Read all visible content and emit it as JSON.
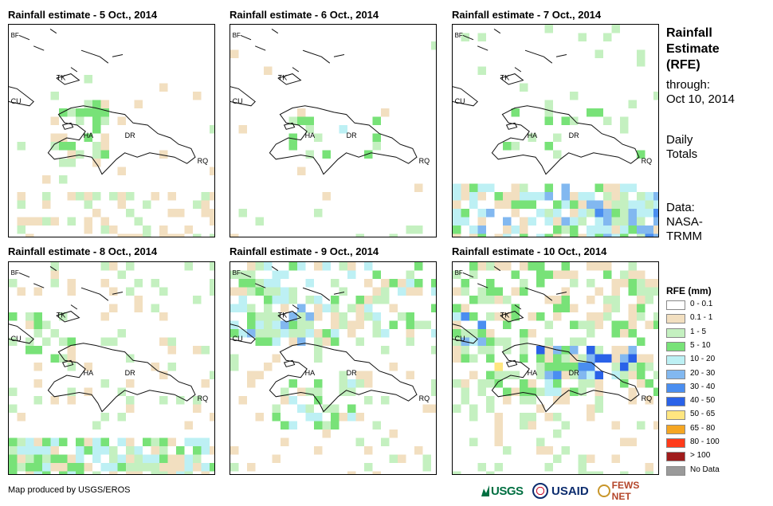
{
  "panels": [
    {
      "title": "Rainfall estimate - 5 Oct., 2014"
    },
    {
      "title": "Rainfall estimate - 6 Oct., 2014"
    },
    {
      "title": "Rainfall estimate - 7 Oct., 2014"
    },
    {
      "title": "Rainfall estimate - 8 Oct., 2014"
    },
    {
      "title": "Rainfall estimate - 9 Oct., 2014"
    },
    {
      "title": "Rainfall estimate - 10 Oct., 2014"
    }
  ],
  "map_labels": {
    "bf": "BF",
    "cu": "CU",
    "tk": "TK",
    "ha": "HA",
    "dr": "DR",
    "rq": "RQ"
  },
  "side": {
    "title_lines": [
      "Rainfall",
      "Estimate",
      "(RFE)"
    ],
    "through_label": "through:",
    "through_date": "Oct 10, 2014",
    "totals_lines": [
      "Daily",
      "Totals"
    ],
    "data_lines": [
      "Data:",
      "NASA-",
      "TRMM"
    ]
  },
  "legend": {
    "title": "RFE (mm)",
    "items": [
      {
        "label": "0 - 0.1",
        "color": "#ffffff"
      },
      {
        "label": "0.1 - 1",
        "color": "#f2dfc0"
      },
      {
        "label": "1 - 5",
        "color": "#c4f0c0"
      },
      {
        "label": "5 - 10",
        "color": "#78e278"
      },
      {
        "label": "10 - 20",
        "color": "#bdf0f4"
      },
      {
        "label": "20 - 30",
        "color": "#82b8f0"
      },
      {
        "label": "30 - 40",
        "color": "#4a8ef0"
      },
      {
        "label": "40 - 50",
        "color": "#2a62e8"
      },
      {
        "label": "50 - 65",
        "color": "#ffe680"
      },
      {
        "label": "65 - 80",
        "color": "#f5a623"
      },
      {
        "label": "80 - 100",
        "color": "#ff3b1a"
      },
      {
        "label": "> 100",
        "color": "#a01c1c"
      },
      {
        "label": "No Data",
        "color": "#9a9a9a"
      }
    ]
  },
  "credit": "Map produced by USGS/EROS",
  "logos": {
    "usgs": "USGS",
    "usaid": "USAID",
    "fews": "FEWS NET"
  }
}
